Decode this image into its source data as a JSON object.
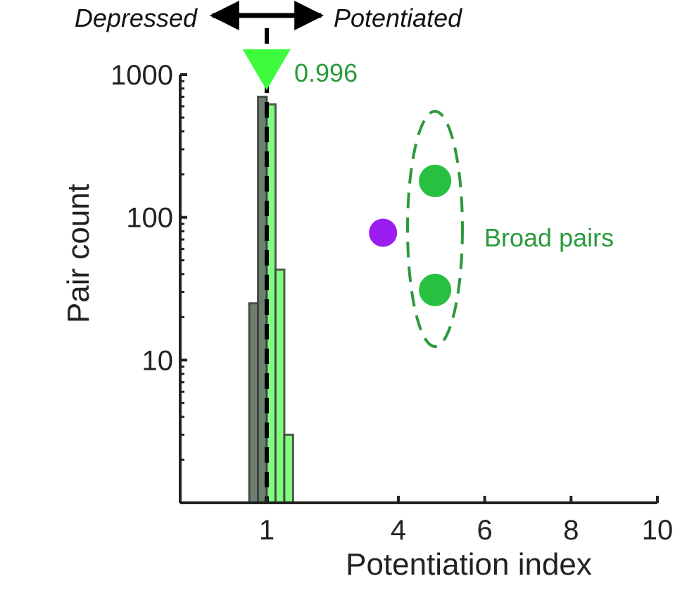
{
  "chart_data": {
    "type": "bar",
    "xlabel": "Potentiation index",
    "ylabel": "Pair count",
    "yscale": "log",
    "ylim": [
      1,
      1000
    ],
    "x_ticks": [
      {
        "value": 1,
        "label": "1"
      },
      {
        "value": 4,
        "label": "4"
      },
      {
        "value": 6,
        "label": "6"
      },
      {
        "value": 8,
        "label": "8"
      },
      {
        "value": 10,
        "label": "10"
      }
    ],
    "y_ticks": [
      {
        "value": 10,
        "label": "10"
      },
      {
        "value": 100,
        "label": "100"
      },
      {
        "value": 1000,
        "label": "1000"
      }
    ],
    "bins": [
      {
        "x0": 0.6,
        "x1": 0.8,
        "count": 25,
        "group": "depressed"
      },
      {
        "x0": 0.8,
        "x1": 1.0,
        "count": 700,
        "group": "depressed"
      },
      {
        "x0": 1.0,
        "x1": 1.2,
        "count": 620,
        "group": "potentiated"
      },
      {
        "x0": 1.2,
        "x1": 1.4,
        "count": 43,
        "group": "potentiated"
      },
      {
        "x0": 1.4,
        "x1": 1.6,
        "count": 3,
        "group": "potentiated"
      }
    ],
    "colors": {
      "depressed": "#6b806f",
      "potentiated": "#80fc80",
      "outline": "#3c3c3c",
      "broad_points": "#27c040",
      "outlier_point": "#9b1df0",
      "marker": "#3dfc3d",
      "annotation": "#2a9a3c"
    },
    "points": [
      {
        "x": 4.85,
        "y": 180,
        "group": "broad"
      },
      {
        "x": 4.85,
        "y": 31,
        "group": "broad"
      },
      {
        "x": 3.65,
        "y": 78,
        "group": "other"
      }
    ],
    "median_marker": {
      "value": 0.996,
      "label": "0.996"
    },
    "reference_line": {
      "x": 1
    },
    "annotations": {
      "broad": "Broad pairs",
      "left_direction": "Depressed",
      "right_direction": "Potentiated"
    },
    "grid": false,
    "legend": "none"
  }
}
